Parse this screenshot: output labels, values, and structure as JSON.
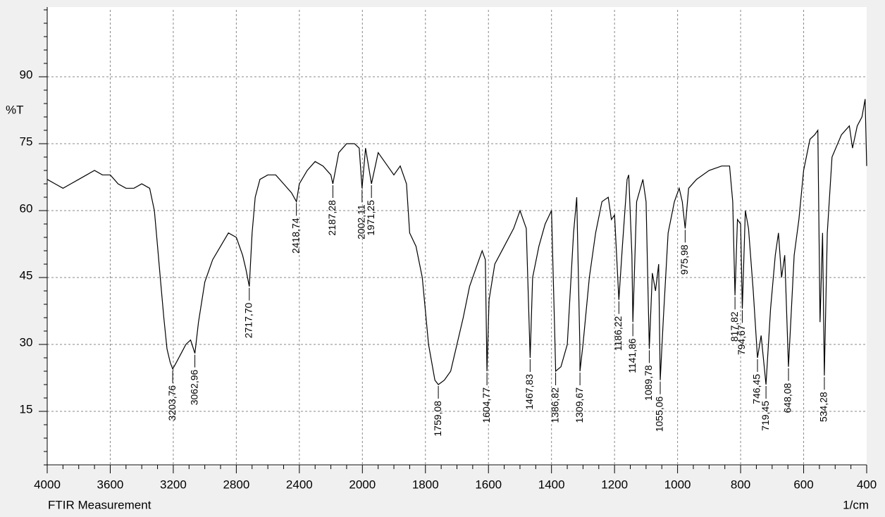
{
  "chart_data": {
    "type": "line",
    "x_label": "FTIR Measurement",
    "x_unit": "1/cm",
    "y_label": "%T",
    "xlim": [
      4000,
      400
    ],
    "xticks": [
      4000,
      3600,
      3200,
      2800,
      2400,
      2000,
      1800,
      1600,
      1400,
      1200,
      1000,
      800,
      600,
      400
    ],
    "ylim": [
      3,
      105
    ],
    "yticks": [
      15,
      30,
      45,
      60,
      75,
      90
    ],
    "grid": true,
    "x": [
      4000,
      3950,
      3900,
      3850,
      3800,
      3750,
      3700,
      3650,
      3600,
      3550,
      3500,
      3450,
      3400,
      3350,
      3320,
      3300,
      3280,
      3260,
      3240,
      3220,
      3203.76,
      3180,
      3150,
      3120,
      3090,
      3062.96,
      3040,
      3000,
      2950,
      2900,
      2850,
      2800,
      2760,
      2740,
      2717.7,
      2700,
      2680,
      2650,
      2600,
      2550,
      2500,
      2450,
      2418.74,
      2400,
      2350,
      2300,
      2250,
      2200,
      2187.28,
      2150,
      2100,
      2050,
      2020,
      2002.11,
      1990,
      1971.25,
      1950,
      1920,
      1900,
      1880,
      1860,
      1850,
      1830,
      1810,
      1790,
      1770,
      1759.08,
      1740,
      1720,
      1700,
      1680,
      1660,
      1640,
      1620,
      1610,
      1604.77,
      1598,
      1580,
      1550,
      1520,
      1500,
      1480,
      1467.83,
      1460,
      1440,
      1420,
      1400,
      1390,
      1386.82,
      1370,
      1350,
      1330,
      1320,
      1310,
      1309.67,
      1300,
      1280,
      1260,
      1240,
      1220,
      1210,
      1200,
      1186.22,
      1175,
      1160,
      1155,
      1145,
      1141.86,
      1130,
      1110,
      1100,
      1089.78,
      1080,
      1070,
      1060,
      1055.06,
      1045,
      1030,
      1010,
      995,
      985,
      975.98,
      965,
      940,
      900,
      860,
      835,
      825,
      817.82,
      810,
      800,
      794.67,
      785,
      775,
      760,
      746.45,
      735,
      719.45,
      705,
      690,
      680,
      670,
      660,
      648.08,
      630,
      615,
      600,
      580,
      565,
      555,
      548,
      540,
      534.28,
      525,
      510,
      480,
      455,
      445,
      430,
      415,
      405,
      400
    ],
    "series": [
      {
        "color": "#000000",
        "values": [
          67,
          66,
          65,
          66,
          67,
          68,
          69,
          68,
          68,
          66,
          65,
          65,
          66,
          65,
          60,
          52,
          44,
          36,
          29,
          26,
          24.5,
          26,
          28,
          30,
          31,
          28,
          35,
          44,
          49,
          52,
          55,
          54,
          50,
          47,
          43,
          55,
          63,
          67,
          68,
          68,
          66,
          64,
          62,
          66,
          69,
          71,
          70,
          68,
          66,
          73,
          75,
          75,
          74,
          65,
          74,
          66,
          73,
          70,
          68,
          70,
          66,
          55,
          52,
          45,
          30,
          22,
          21,
          22,
          24,
          30,
          36,
          43,
          47,
          51,
          49,
          24,
          40,
          48,
          52,
          56,
          60,
          56,
          27,
          45,
          52,
          57,
          60,
          33,
          24,
          25,
          30,
          55,
          63,
          30,
          24,
          30,
          45,
          55,
          62,
          63,
          58,
          59,
          40,
          52,
          67,
          68,
          50,
          35,
          62,
          67,
          62,
          29,
          46,
          42,
          48,
          22,
          36,
          55,
          62,
          65,
          62,
          56,
          65,
          67,
          69,
          70,
          70,
          62,
          41,
          58,
          57,
          38,
          60,
          56,
          42,
          27,
          32,
          21,
          38,
          50,
          55,
          45,
          50,
          25,
          50,
          58,
          69,
          76,
          77,
          78,
          35,
          55,
          23,
          55,
          72,
          77,
          79,
          74,
          79,
          81,
          85,
          70
        ]
      }
    ],
    "peaks": [
      {
        "value": 3203.76,
        "label": "3203,76"
      },
      {
        "value": 3062.96,
        "label": "3062,96"
      },
      {
        "value": 2717.7,
        "label": "2717,70"
      },
      {
        "value": 2418.74,
        "label": "2418,74"
      },
      {
        "value": 2187.28,
        "label": "2187,28"
      },
      {
        "value": 2002.11,
        "label": "2002,11"
      },
      {
        "value": 1971.25,
        "label": "1971,25"
      },
      {
        "value": 1759.08,
        "label": "1759,08"
      },
      {
        "value": 1604.77,
        "label": "1604,77"
      },
      {
        "value": 1467.83,
        "label": "1467,83"
      },
      {
        "value": 1386.82,
        "label": "1386,82"
      },
      {
        "value": 1309.67,
        "label": "1309,67"
      },
      {
        "value": 1186.22,
        "label": "1186,22"
      },
      {
        "value": 1141.86,
        "label": "1141,86"
      },
      {
        "value": 1089.78,
        "label": "1089,78"
      },
      {
        "value": 1055.06,
        "label": "1055,06"
      },
      {
        "value": 975.98,
        "label": "975,98"
      },
      {
        "value": 817.82,
        "label": "817,82"
      },
      {
        "value": 794.67,
        "label": "794,67"
      },
      {
        "value": 746.45,
        "label": "746,45"
      },
      {
        "value": 719.45,
        "label": "719,45"
      },
      {
        "value": 648.08,
        "label": "648,08"
      },
      {
        "value": 534.28,
        "label": "534,28"
      }
    ]
  }
}
